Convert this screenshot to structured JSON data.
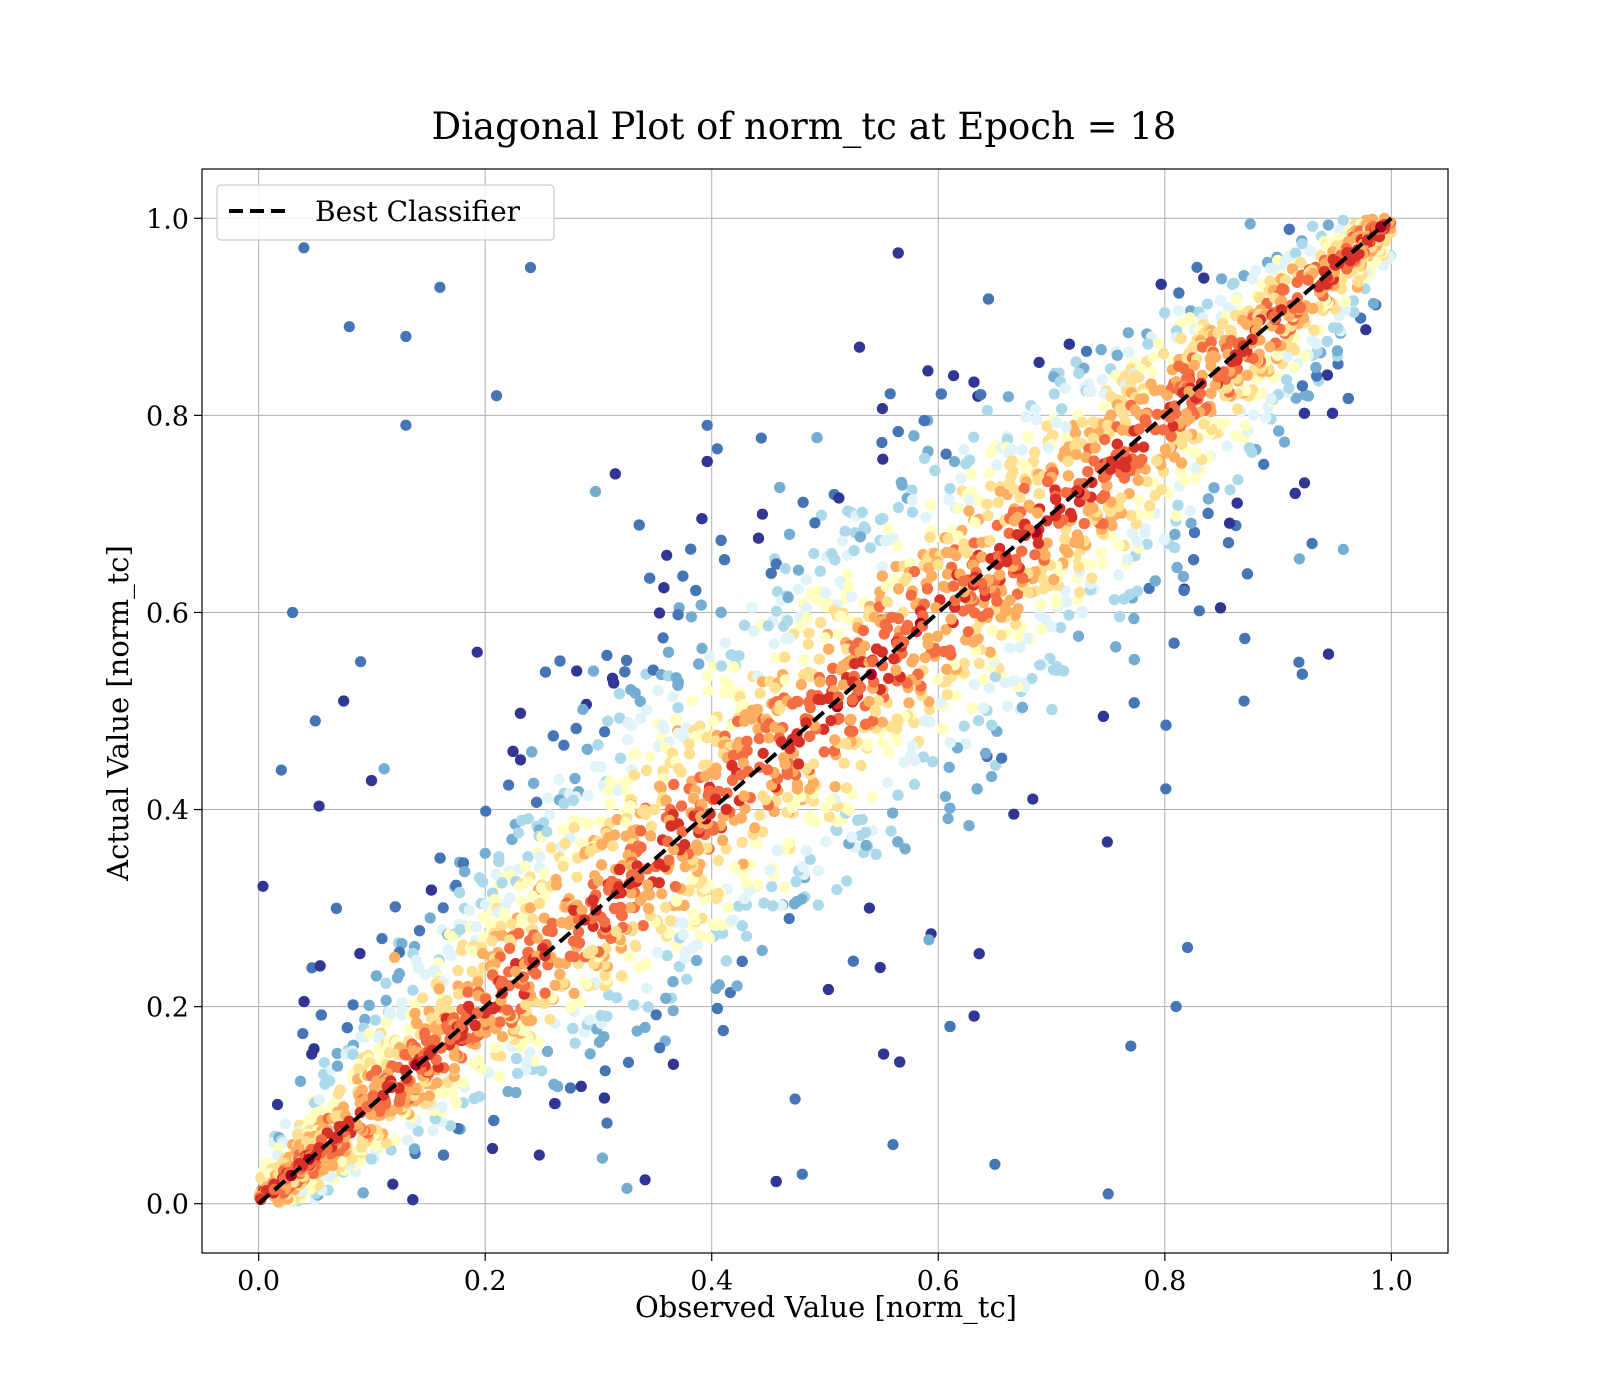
{
  "chart_data": {
    "type": "scatter",
    "title": "Diagonal Plot of norm_tc at Epoch = 18",
    "xlabel": "Observed Value [norm_tc]",
    "ylabel": "Actual Value [norm_tc]",
    "xlim": [
      -0.05,
      1.05
    ],
    "ylim": [
      -0.05,
      1.05
    ],
    "xticks": [
      0.0,
      0.2,
      0.4,
      0.6,
      0.8,
      1.0
    ],
    "yticks": [
      0.0,
      0.2,
      0.4,
      0.6,
      0.8,
      1.0
    ],
    "xtick_labels": [
      "0.0",
      "0.2",
      "0.4",
      "0.6",
      "0.8",
      "1.0"
    ],
    "ytick_labels": [
      "0.0",
      "0.2",
      "0.4",
      "0.6",
      "0.8",
      "1.0"
    ],
    "grid": true,
    "legend": {
      "placement": "top-left",
      "entries": [
        "Best Classifier"
      ]
    },
    "reference_line": {
      "name": "Best Classifier",
      "style": "dashed",
      "color": "#000000",
      "x": [
        0.0,
        1.0
      ],
      "y": [
        0.0,
        1.0
      ]
    },
    "point_colormap": [
      "#313695",
      "#4575b4",
      "#74add1",
      "#abd9e9",
      "#e0f3f8",
      "#ffffbf",
      "#fee090",
      "#fdae61",
      "#f46d43",
      "#d73027",
      "#a50026"
    ],
    "points_summary": "Dense band of points along y = x with spread widening near the middle; outliers scattered off-diagonal",
    "sample_points": [
      {
        "x": 0.04,
        "y": 0.97
      },
      {
        "x": 0.08,
        "y": 0.89
      },
      {
        "x": 0.13,
        "y": 0.88
      },
      {
        "x": 0.16,
        "y": 0.93
      },
      {
        "x": 0.24,
        "y": 0.95
      },
      {
        "x": 0.21,
        "y": 0.82
      },
      {
        "x": 0.13,
        "y": 0.79
      },
      {
        "x": 0.03,
        "y": 0.6
      },
      {
        "x": 0.09,
        "y": 0.55
      },
      {
        "x": 0.05,
        "y": 0.49
      },
      {
        "x": 0.02,
        "y": 0.44
      },
      {
        "x": 0.93,
        "y": 0.67
      },
      {
        "x": 0.87,
        "y": 0.51
      },
      {
        "x": 0.82,
        "y": 0.26
      },
      {
        "x": 0.81,
        "y": 0.2
      },
      {
        "x": 0.77,
        "y": 0.16
      },
      {
        "x": 0.75,
        "y": 0.01
      },
      {
        "x": 0.65,
        "y": 0.04
      },
      {
        "x": 0.56,
        "y": 0.06
      },
      {
        "x": 0.48,
        "y": 0.03
      },
      {
        "x": 0.12,
        "y": 0.25
      },
      {
        "x": 0.48,
        "y": 0.41
      },
      {
        "x": 0.72,
        "y": 0.79
      },
      {
        "x": 0.97,
        "y": 0.93
      },
      {
        "x": 0.03,
        "y": 0.06
      },
      {
        "x": 0.37,
        "y": 0.48
      },
      {
        "x": 0.64,
        "y": 0.61
      },
      {
        "x": 0.98,
        "y": 0.99
      }
    ]
  }
}
